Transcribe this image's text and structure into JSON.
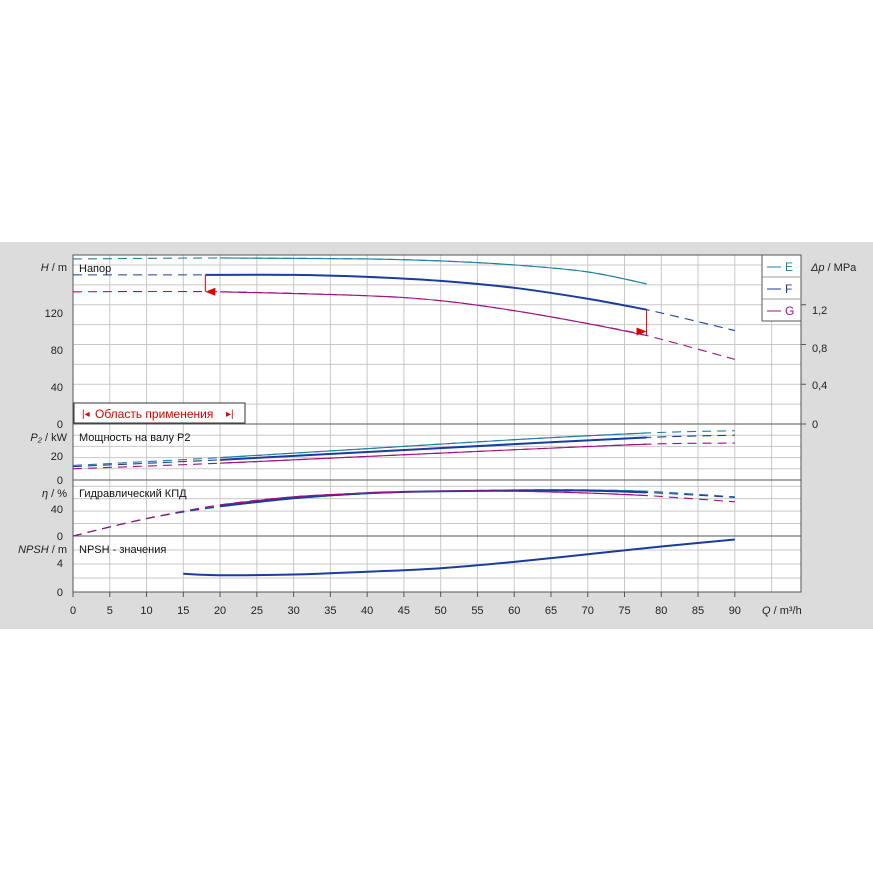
{
  "panels": {
    "head": {
      "title": "Напор",
      "ylabel_sym": "H",
      "ylabel_unit": " / m",
      "yticks": [
        "120",
        "80",
        "40",
        "0"
      ]
    },
    "pressure": {
      "ylabel_sym": "Δp",
      "ylabel_unit": " / MPa",
      "yticks": [
        "1,2",
        "0,8",
        "0,4",
        "0"
      ]
    },
    "power": {
      "title": "Мощность на валу P2",
      "ylabel_sym": "P₂",
      "ylabel_unit": " / kW",
      "yticks": [
        "20",
        "0"
      ]
    },
    "efficiency": {
      "title": "Гидравлический КПД",
      "ylabel_sym": "η",
      "ylabel_unit": " / %",
      "yticks": [
        "40",
        "0"
      ]
    },
    "npsh": {
      "title": "NPSH - значения",
      "ylabel_sym": "NPSH",
      "ylabel_unit": " / m",
      "yticks": [
        "4",
        "0"
      ]
    }
  },
  "x_axis": {
    "label_sym": "Q",
    "label_unit": " / m³/h",
    "ticks": [
      "0",
      "5",
      "10",
      "15",
      "20",
      "25",
      "30",
      "35",
      "40",
      "45",
      "50",
      "55",
      "60",
      "65",
      "70",
      "75",
      "80",
      "85",
      "90"
    ]
  },
  "range_label": "Область применения",
  "legend": [
    {
      "name": "E",
      "color": "#1e7fa0"
    },
    {
      "name": "F",
      "color": "#1a3c9c"
    },
    {
      "name": "G",
      "color": "#a0107e"
    }
  ],
  "chart_data": {
    "type": "line",
    "x_unit": "m³/h",
    "operating_range": [
      18,
      78
    ],
    "head": {
      "xlim": [
        0,
        99
      ],
      "ylim": [
        0,
        170
      ],
      "series": [
        {
          "name": "E",
          "color": "#1e7fa0",
          "style": "dashed",
          "x": [
            0,
            20,
            40,
            50,
            60,
            70,
            78
          ],
          "y": [
            166,
            167,
            166,
            164,
            160,
            153,
            141
          ]
        },
        {
          "name": "F",
          "color": "#1a3c9c",
          "style": "bold",
          "x": [
            0,
            10,
            18,
            30,
            40,
            50,
            60,
            70,
            78,
            90
          ],
          "y": [
            150,
            150,
            150,
            150,
            148,
            144,
            137,
            126,
            115,
            94
          ]
        },
        {
          "name": "G",
          "color": "#a0107e",
          "style": "dashed",
          "x": [
            0,
            20,
            40,
            50,
            60,
            70,
            78,
            90
          ],
          "y": [
            133,
            133,
            129,
            124,
            114,
            101,
            89,
            65
          ]
        }
      ]
    },
    "power": {
      "xlim": [
        0,
        99
      ],
      "ylim": [
        0,
        50
      ],
      "series": [
        {
          "name": "E",
          "color": "#1e7fa0",
          "x": [
            0,
            20,
            40,
            60,
            78,
            90
          ],
          "y": [
            13,
            20,
            28,
            36,
            42,
            44
          ]
        },
        {
          "name": "F",
          "color": "#1a3c9c",
          "x": [
            0,
            20,
            40,
            60,
            78,
            90
          ],
          "y": [
            12,
            18,
            25,
            32,
            38,
            40
          ]
        },
        {
          "name": "G",
          "color": "#a0107e",
          "x": [
            0,
            20,
            40,
            60,
            78,
            90
          ],
          "y": [
            10,
            15,
            21,
            27,
            32,
            33
          ]
        }
      ]
    },
    "efficiency": {
      "xlim": [
        0,
        99
      ],
      "ylim": [
        0,
        90
      ],
      "series": [
        {
          "name": "E",
          "color": "#1e7fa0",
          "x": [
            0,
            10,
            20,
            30,
            40,
            50,
            60,
            70,
            78,
            90
          ],
          "y": [
            0,
            28,
            47,
            60,
            68,
            72,
            74,
            74,
            72,
            63
          ]
        },
        {
          "name": "F",
          "color": "#1a3c9c",
          "x": [
            0,
            10,
            20,
            30,
            40,
            50,
            60,
            70,
            78,
            90
          ],
          "y": [
            0,
            28,
            48,
            61,
            69,
            72,
            73,
            73,
            70,
            62
          ]
        },
        {
          "name": "G",
          "color": "#a0107e",
          "x": [
            0,
            10,
            20,
            30,
            40,
            50,
            60,
            70,
            78,
            90
          ],
          "y": [
            0,
            28,
            50,
            63,
            69,
            72,
            72,
            69,
            65,
            55
          ]
        }
      ]
    },
    "npsh": {
      "xlim": [
        0,
        99
      ],
      "ylim": [
        0,
        8
      ],
      "series": [
        {
          "name": "NPSH",
          "color": "#1a3c9c",
          "x": [
            15,
            20,
            30,
            40,
            50,
            60,
            70,
            80,
            90
          ],
          "y": [
            2.6,
            2.4,
            2.5,
            2.9,
            3.4,
            4.3,
            5.4,
            6.5,
            7.5
          ]
        }
      ]
    }
  }
}
